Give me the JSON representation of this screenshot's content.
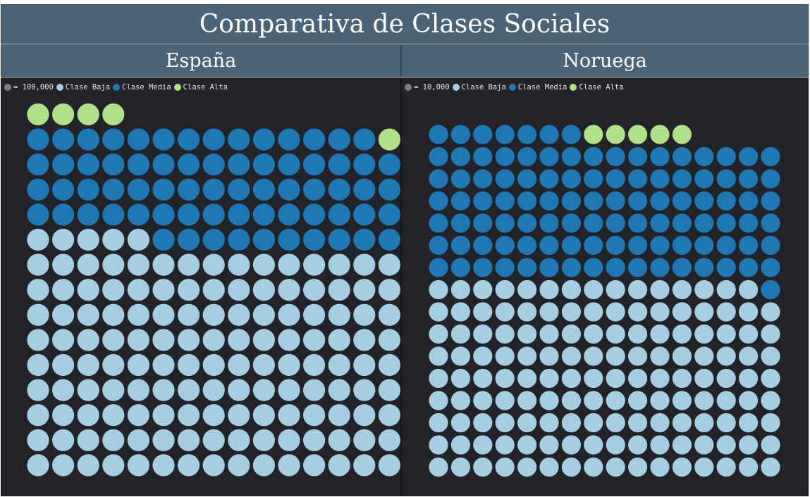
{
  "title": "Comparativa de Clases Sociales",
  "colors": {
    "baja": "#a6cee3",
    "media": "#1f78b4",
    "alta": "#b2df8a",
    "unit_dot": "#7f7f7f"
  },
  "chart_data": [
    {
      "type": "waffle",
      "title": "España",
      "unit_label": "= 100,000",
      "series": [
        {
          "name": "Clase Baja",
          "units": 140
        },
        {
          "name": "Clase Media",
          "units": 69
        },
        {
          "name": "Clase Alta",
          "units": 5
        }
      ],
      "columns": 15
    },
    {
      "type": "waffle",
      "title": "Noruega",
      "unit_label": "= 10,000",
      "series": [
        {
          "name": "Clase Baja",
          "units": 143
        },
        {
          "name": "Clase Media",
          "units": 104
        },
        {
          "name": "Clase Alta",
          "units": 5
        }
      ],
      "columns": 16
    }
  ]
}
